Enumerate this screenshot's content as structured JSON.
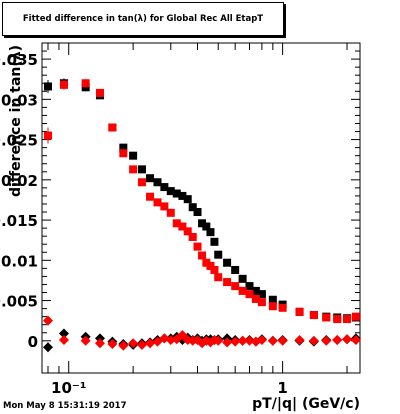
{
  "chart_data": {
    "type": "scatter",
    "title": "Fitted difference in tan(λ) for Global Rec All EtapT",
    "xlabel": "pT/|q| (GeV/c)",
    "ylabel": "difference in tan(λ)",
    "x_scale": "log",
    "xlim": [
      0.075,
      2.3
    ],
    "ylim": [
      -0.004,
      0.037
    ],
    "x_ticks": [
      {
        "value": 0.1,
        "label": "10⁻¹"
      },
      {
        "value": 1,
        "label": "1"
      }
    ],
    "y_ticks": [
      0,
      0.005,
      0.01,
      0.015,
      0.02,
      0.025,
      0.03,
      0.035
    ],
    "y_tick_labels": [
      "0",
      "0.005",
      "0.01",
      "0.015",
      "0.02",
      "0.025",
      "0.03",
      "0.035"
    ],
    "grid": false,
    "legend": "none",
    "series": [
      {
        "marker": "square",
        "color": "#000000",
        "x": [
          0.08,
          0.095,
          0.12,
          0.14,
          0.16,
          0.18,
          0.2,
          0.22,
          0.24,
          0.26,
          0.28,
          0.3,
          0.32,
          0.34,
          0.36,
          0.38,
          0.4,
          0.42,
          0.44,
          0.46,
          0.48,
          0.5,
          0.55,
          0.6,
          0.65,
          0.7,
          0.75,
          0.8,
          0.9,
          1.0,
          1.2,
          1.4,
          1.6,
          1.8,
          2.0,
          2.2
        ],
        "y": [
          0.0316,
          0.032,
          0.0315,
          0.0305,
          0.0265,
          0.024,
          0.023,
          0.0213,
          0.0202,
          0.0197,
          0.0191,
          0.0186,
          0.0183,
          0.018,
          0.0176,
          0.0166,
          0.016,
          0.0146,
          0.0142,
          0.0135,
          0.0123,
          0.0107,
          0.0097,
          0.0088,
          0.0077,
          0.0068,
          0.0062,
          0.0058,
          0.0051,
          0.0045,
          0.0036,
          0.0032,
          0.003,
          0.0029,
          0.0028,
          0.0029
        ],
        "yerr": [
          0.0008,
          0.0006,
          0.0005,
          0.0005,
          0.0004,
          0.0004,
          0.0003,
          0.0003,
          0.0003,
          0.0003,
          0.0003,
          0.0003,
          0.0003,
          0.0003,
          0.0003,
          0.0003,
          0.0003,
          0.0003,
          0.0003,
          0.0003,
          0.0003,
          0.0003,
          0.0002,
          0.0002,
          0.0002,
          0.0002,
          0.0002,
          0.0002,
          0.0002,
          0.0002,
          0.0002,
          0.0002,
          0.0002,
          0.0002,
          0.0002,
          0.0002
        ]
      },
      {
        "marker": "square",
        "color": "#ff0000",
        "x": [
          0.08,
          0.095,
          0.12,
          0.14,
          0.16,
          0.18,
          0.2,
          0.22,
          0.24,
          0.26,
          0.28,
          0.3,
          0.32,
          0.34,
          0.36,
          0.38,
          0.4,
          0.42,
          0.44,
          0.46,
          0.48,
          0.5,
          0.55,
          0.6,
          0.65,
          0.7,
          0.75,
          0.8,
          0.9,
          1.0,
          1.2,
          1.4,
          1.6,
          1.8,
          2.0,
          2.2
        ],
        "y": [
          0.0255,
          0.0318,
          0.032,
          0.0308,
          0.0265,
          0.0233,
          0.0213,
          0.0197,
          0.0179,
          0.0172,
          0.0167,
          0.0159,
          0.0146,
          0.0142,
          0.0136,
          0.0129,
          0.0117,
          0.0106,
          0.0097,
          0.0093,
          0.0088,
          0.0079,
          0.0073,
          0.0068,
          0.0062,
          0.0058,
          0.0052,
          0.0048,
          0.0043,
          0.0041,
          0.0036,
          0.0032,
          0.0029,
          0.0027,
          0.0027,
          0.003
        ],
        "yerr": [
          0.001,
          0.0006,
          0.0005,
          0.0005,
          0.0004,
          0.0004,
          0.0003,
          0.0003,
          0.0003,
          0.0003,
          0.0003,
          0.0003,
          0.0003,
          0.0003,
          0.0003,
          0.0003,
          0.0003,
          0.0003,
          0.0003,
          0.0003,
          0.0003,
          0.0003,
          0.0002,
          0.0002,
          0.0002,
          0.0002,
          0.0002,
          0.0002,
          0.0002,
          0.0002,
          0.0002,
          0.0002,
          0.0002,
          0.0002,
          0.0002,
          0.0002
        ]
      },
      {
        "marker": "diamond",
        "color": "#000000",
        "x": [
          0.08,
          0.095,
          0.12,
          0.14,
          0.16,
          0.18,
          0.2,
          0.22,
          0.24,
          0.26,
          0.28,
          0.3,
          0.32,
          0.34,
          0.36,
          0.38,
          0.4,
          0.42,
          0.44,
          0.46,
          0.48,
          0.5,
          0.55,
          0.6,
          0.65,
          0.7,
          0.75,
          0.8,
          0.9,
          1.0,
          1.2,
          1.4,
          1.6,
          1.8,
          2.0,
          2.2
        ],
        "y": [
          -0.0008,
          0.0009,
          0.0005,
          0.0003,
          -0.0001,
          -0.0004,
          -0.0005,
          -0.0003,
          -0.0002,
          0.0001,
          0.0003,
          0.0003,
          0.0005,
          0.0001,
          0.0004,
          0.0001,
          0.0003,
          0.0,
          0.0002,
          0.0002,
          0.0001,
          0.0002,
          0.0003,
          0.0001,
          0.0,
          0.0001,
          -0.0001,
          0.0002,
          0.0,
          0.0001,
          0.0,
          -0.0001,
          0.0001,
          0.0001,
          0.0002,
          0.0003
        ],
        "yerr": [
          0.0006,
          0.0004,
          0.0003,
          0.0003,
          0.0003,
          0.0002,
          0.0002,
          0.0002,
          0.0002,
          0.0002,
          0.0002,
          0.0002,
          0.0002,
          0.0002,
          0.0002,
          0.0002,
          0.0002,
          0.0002,
          0.0002,
          0.0002,
          0.0002,
          0.0002,
          0.0002,
          0.0002,
          0.0002,
          0.0002,
          0.0002,
          0.0002,
          0.0002,
          0.0002,
          0.0002,
          0.0002,
          0.0002,
          0.0002,
          0.0002,
          0.0002
        ]
      },
      {
        "marker": "diamond",
        "color": "#ff0000",
        "x": [
          0.08,
          0.095,
          0.12,
          0.14,
          0.16,
          0.18,
          0.2,
          0.22,
          0.24,
          0.26,
          0.28,
          0.3,
          0.32,
          0.34,
          0.36,
          0.38,
          0.4,
          0.42,
          0.44,
          0.46,
          0.48,
          0.5,
          0.55,
          0.6,
          0.65,
          0.7,
          0.75,
          0.8,
          0.9,
          1.0,
          1.2,
          1.4,
          1.6,
          1.8,
          2.0,
          2.2
        ],
        "y": [
          0.0025,
          0.0001,
          0.0,
          -0.0003,
          -0.0004,
          -0.0006,
          -0.0003,
          -0.0005,
          -0.0003,
          -0.0001,
          0.0003,
          0.0001,
          0.0002,
          0.0007,
          0.0001,
          0.0,
          0.0001,
          -0.0003,
          0.0,
          -0.0002,
          0.0001,
          0.0,
          -0.0002,
          -0.0001,
          0.0,
          0.0,
          -0.0001,
          0.0001,
          0.0,
          0.0,
          0.0001,
          0.0,
          0.0,
          0.0001,
          0.0002,
          0.0001
        ],
        "yerr": [
          0.0006,
          0.0004,
          0.0003,
          0.0003,
          0.0003,
          0.0002,
          0.0002,
          0.0002,
          0.0002,
          0.0002,
          0.0002,
          0.0002,
          0.0002,
          0.0002,
          0.0002,
          0.0002,
          0.0002,
          0.0002,
          0.0002,
          0.0002,
          0.0002,
          0.0002,
          0.0002,
          0.0002,
          0.0002,
          0.0002,
          0.0002,
          0.0002,
          0.0002,
          0.0002,
          0.0002,
          0.0002,
          0.0002,
          0.0002,
          0.0002,
          0.0002
        ]
      }
    ]
  },
  "footer": {
    "timestamp": "Mon May  8 15:31:19 2017"
  }
}
